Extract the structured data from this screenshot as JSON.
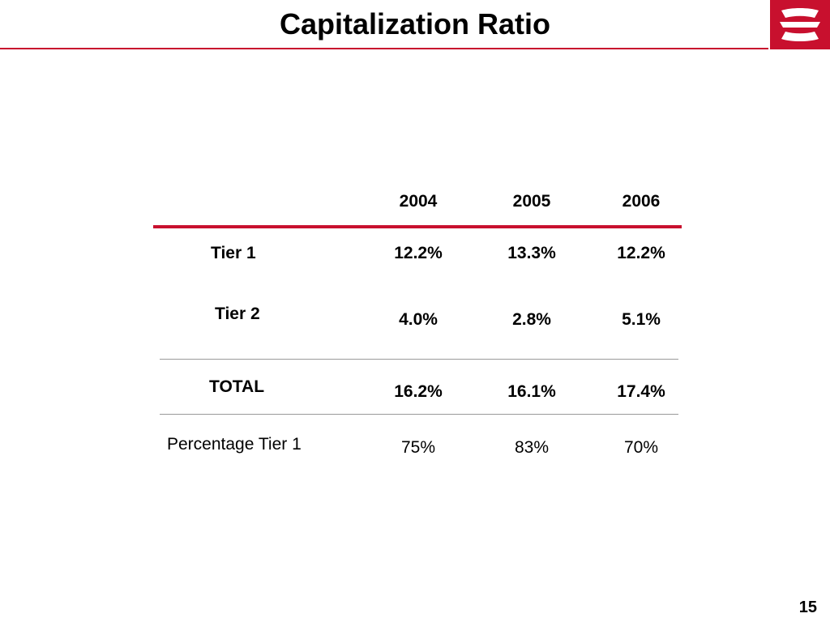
{
  "header": {
    "title": "Capitalization Ratio",
    "accent_color": "#c8102e"
  },
  "logo": {
    "icon": "bank-logo-icon",
    "color": "#c8102e"
  },
  "table": {
    "columns": [
      "2004",
      "2005",
      "2006"
    ],
    "rows": [
      {
        "label": "Tier 1",
        "values": [
          "12.2%",
          "13.3%",
          "12.2%"
        ]
      },
      {
        "label": "Tier 2",
        "values": [
          "4.0%",
          "2.8%",
          "5.1%"
        ]
      },
      {
        "label": "TOTAL",
        "values": [
          "16.2%",
          "16.1%",
          "17.4%"
        ]
      },
      {
        "label": "Percentage Tier 1",
        "values": [
          "75%",
          "83%",
          "70%"
        ]
      }
    ]
  },
  "footer": {
    "page_number": "15"
  }
}
